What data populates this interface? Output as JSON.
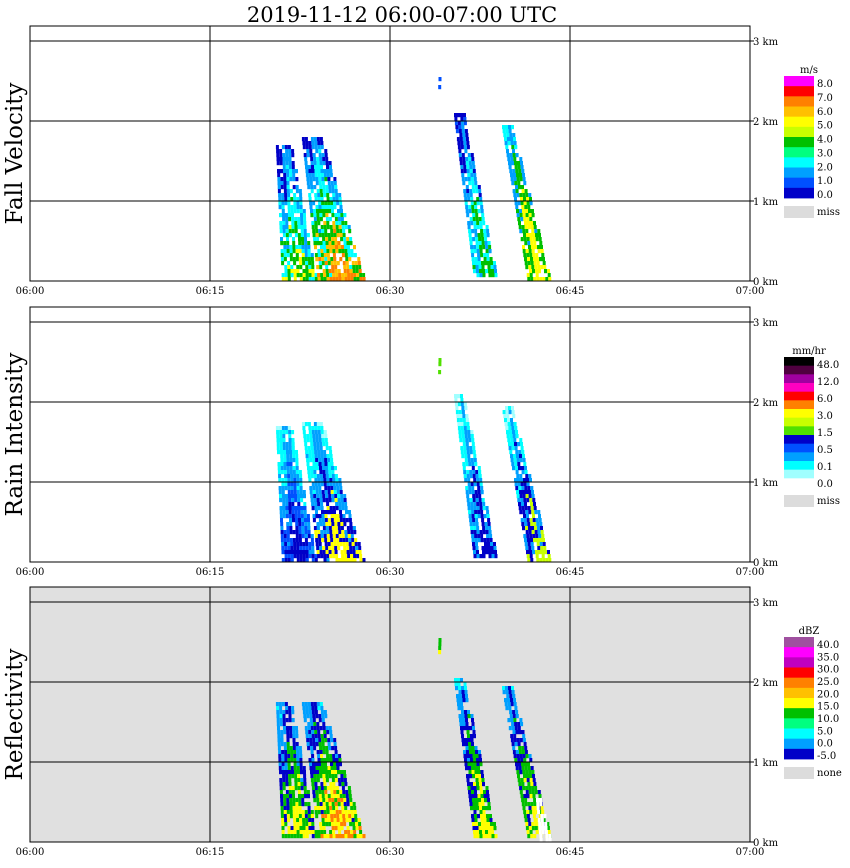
{
  "title": "2019-11-12   06:00-07:00 UTC",
  "chart_data": [
    {
      "type": "heatmap",
      "name": "Fall Velocity",
      "ylabel": "Fall Velocity",
      "x_ticks": [
        "06:00",
        "06:15",
        "06:30",
        "06:45",
        "07:00"
      ],
      "y_ticks": [
        "0 km",
        "1 km",
        "2 km",
        "3 km"
      ],
      "xlim": [
        "06:00",
        "07:00"
      ],
      "ylim_km": [
        0,
        3
      ],
      "background": "#ffffff",
      "legend": {
        "unit": "m/s",
        "colors": [
          "#ff00ff",
          "#ff0000",
          "#ff8000",
          "#ffc000",
          "#ffff00",
          "#c8ff00",
          "#00c000",
          "#00ff80",
          "#00ffff",
          "#00a0ff",
          "#0050ff",
          "#0000c8"
        ],
        "labels": [
          "8.0",
          "7.0",
          "6.0",
          "5.0",
          "4.0",
          "3.0",
          "2.0",
          "1.0",
          "0.0"
        ],
        "miss_label": "miss"
      },
      "echoes": [
        {
          "x0": "06:20",
          "x1": "06:23",
          "ytop_km": 1.7,
          "ybot_km": 0.0,
          "lean_min": 1.0,
          "colors": [
            "#0050ff",
            "#0000c8",
            "#00a0ff",
            "#00ffff",
            "#00c000",
            "#ffff00"
          ]
        },
        {
          "x0": "06:22",
          "x1": "06:26",
          "ytop_km": 1.8,
          "ybot_km": 0.0,
          "lean_min": 2.0,
          "colors": [
            "#0050ff",
            "#0000c8",
            "#00a0ff",
            "#00ffff",
            "#00c000",
            "#ffc000",
            "#ff8000"
          ]
        },
        {
          "x0": "06:35",
          "x1": "06:37",
          "ytop_km": 2.1,
          "ybot_km": 0.05,
          "lean_min": 2.0,
          "colors": [
            "#0050ff",
            "#0000c8",
            "#00a0ff",
            "#00ffff",
            "#00c000"
          ]
        },
        {
          "x0": "06:39",
          "x1": "06:41",
          "ytop_km": 1.95,
          "ybot_km": 0.0,
          "lean_min": 2.5,
          "colors": [
            "#00ffff",
            "#00a0ff",
            "#00c000",
            "#ffff00"
          ]
        },
        {
          "x0": "06:34",
          "x1": "06:34",
          "ytop_km": 2.55,
          "ybot_km": 2.35,
          "lean_min": 0.0,
          "colors": [
            "#0050ff"
          ]
        }
      ]
    },
    {
      "type": "heatmap",
      "name": "Rain Intensity",
      "ylabel": "Rain Intensity",
      "x_ticks": [
        "06:00",
        "06:15",
        "06:30",
        "06:45",
        "07:00"
      ],
      "y_ticks": [
        "0 km",
        "1 km",
        "2 km",
        "3 km"
      ],
      "xlim": [
        "06:00",
        "07:00"
      ],
      "ylim_km": [
        0,
        3
      ],
      "background": "#ffffff",
      "legend": {
        "unit": "mm/hr",
        "colors": [
          "#000000",
          "#500040",
          "#a000a0",
          "#ff00c0",
          "#ff0000",
          "#ff8000",
          "#ffff00",
          "#c8ff00",
          "#50e000",
          "#0000c8",
          "#0050ff",
          "#00a0ff",
          "#00ffff",
          "#a0ffff",
          "#ffffff"
        ],
        "labels": [
          "48.0",
          "12.0",
          "6.0",
          "3.0",
          "1.5",
          "0.5",
          "0.1",
          "0.0"
        ],
        "miss_label": "miss"
      },
      "echoes": [
        {
          "x0": "06:20",
          "x1": "06:23",
          "ytop_km": 1.7,
          "ybot_km": 0.0,
          "lean_min": 1.0,
          "colors": [
            "#a0ffff",
            "#00ffff",
            "#00a0ff",
            "#0050ff",
            "#0000c8"
          ]
        },
        {
          "x0": "06:22",
          "x1": "06:26",
          "ytop_km": 1.75,
          "ybot_km": 0.0,
          "lean_min": 2.0,
          "colors": [
            "#a0ffff",
            "#00ffff",
            "#00a0ff",
            "#0000c8",
            "#ffff00"
          ]
        },
        {
          "x0": "06:35",
          "x1": "06:37",
          "ytop_km": 2.1,
          "ybot_km": 0.05,
          "lean_min": 2.0,
          "colors": [
            "#a0ffff",
            "#00ffff",
            "#00a0ff",
            "#0000c8"
          ]
        },
        {
          "x0": "06:39",
          "x1": "06:41",
          "ytop_km": 1.95,
          "ybot_km": 0.0,
          "lean_min": 2.5,
          "colors": [
            "#a0ffff",
            "#00ffff",
            "#00a0ff",
            "#0000c8",
            "#c8ff00"
          ]
        },
        {
          "x0": "06:34",
          "x1": "06:34",
          "ytop_km": 2.55,
          "ybot_km": 2.35,
          "lean_min": 0.0,
          "colors": [
            "#50e000"
          ]
        }
      ]
    },
    {
      "type": "heatmap",
      "name": "Reflectivity",
      "ylabel": "Reflectivity",
      "x_ticks": [
        "06:00",
        "06:15",
        "06:30",
        "06:45",
        "07:00"
      ],
      "y_ticks": [
        "0 km",
        "1 km",
        "2 km",
        "3 km"
      ],
      "xlim": [
        "06:00",
        "07:00"
      ],
      "ylim_km": [
        0,
        3
      ],
      "background": "#e0e0e0",
      "legend": {
        "unit": "dBZ",
        "colors": [
          "#a050a0",
          "#ff00ff",
          "#c000c0",
          "#ff0000",
          "#ff8000",
          "#ffc000",
          "#ffff00",
          "#00c000",
          "#00ff80",
          "#00ffff",
          "#00a0ff",
          "#0000c8"
        ],
        "labels": [
          "40.0",
          "35.0",
          "30.0",
          "25.0",
          "20.0",
          "15.0",
          "10.0",
          "5.0",
          "0.0",
          "-5.0"
        ],
        "miss_label": "none"
      },
      "echoes": [
        {
          "x0": "06:20",
          "x1": "06:23",
          "ytop_km": 1.75,
          "ybot_km": 0.05,
          "lean_min": 1.0,
          "colors": [
            "#00ffff",
            "#00a0ff",
            "#0000c8",
            "#00c000",
            "#ffff00"
          ]
        },
        {
          "x0": "06:22",
          "x1": "06:26",
          "ytop_km": 1.75,
          "ybot_km": 0.05,
          "lean_min": 2.0,
          "colors": [
            "#00ffff",
            "#00a0ff",
            "#0000c8",
            "#00c000",
            "#ffff00",
            "#ff8000"
          ]
        },
        {
          "x0": "06:35",
          "x1": "06:37",
          "ytop_km": 2.05,
          "ybot_km": 0.05,
          "lean_min": 2.0,
          "colors": [
            "#00ffff",
            "#00a0ff",
            "#0000c8",
            "#00c000",
            "#ffff00"
          ]
        },
        {
          "x0": "06:39",
          "x1": "06:41",
          "ytop_km": 1.95,
          "ybot_km": 0.05,
          "lean_min": 2.5,
          "colors": [
            "#00ffff",
            "#00a0ff",
            "#0000c8",
            "#00c000",
            "#ffff00"
          ]
        },
        {
          "x0": "06:34",
          "x1": "06:34",
          "ytop_km": 2.55,
          "ybot_km": 2.35,
          "lean_min": 0.0,
          "colors": [
            "#00c000",
            "#ffff00"
          ]
        },
        {
          "x0": "06:42",
          "x1": "06:43",
          "ytop_km": 0.55,
          "ybot_km": 0.0,
          "lean_min": 0.5,
          "colors": [
            "#ffffff"
          ]
        }
      ]
    }
  ]
}
